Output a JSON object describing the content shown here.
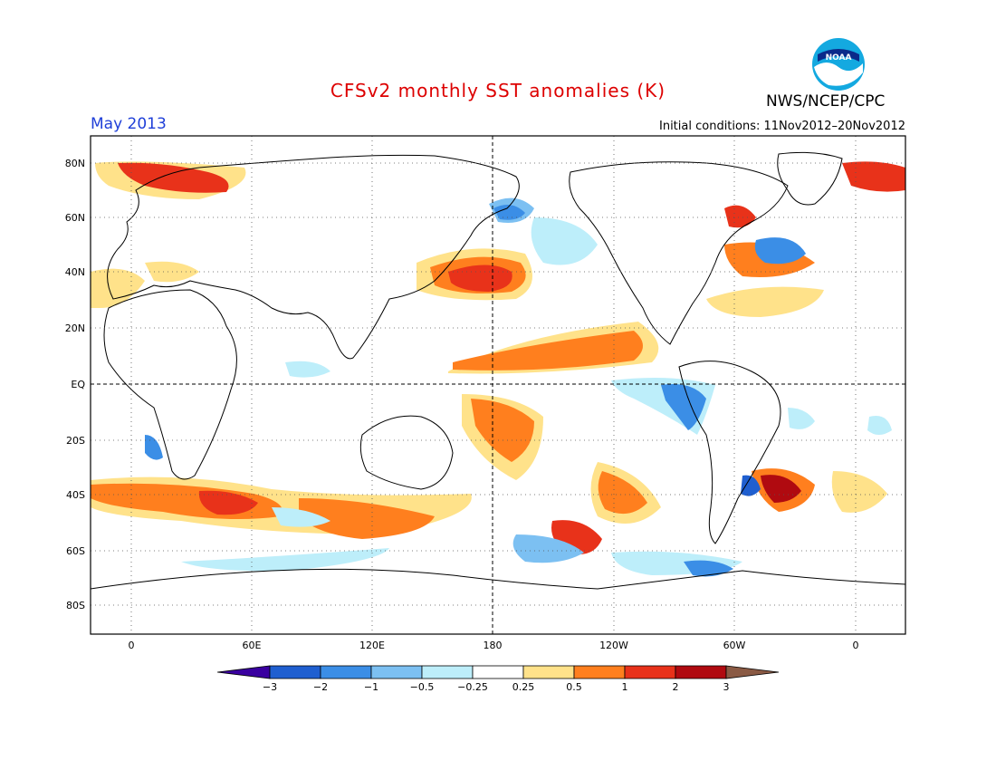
{
  "header": {
    "title": "CFSv2 monthly SST anomalies (K)",
    "month": "May 2013",
    "agency": "NWS/NCEP/CPC",
    "initial_conditions": "Initial conditions: 11Nov2012–20Nov2012",
    "logo_text": "NOAA"
  },
  "map": {
    "lat_labels": [
      "80N",
      "60N",
      "40N",
      "20N",
      "EQ",
      "20S",
      "40S",
      "60S",
      "80S"
    ],
    "lon_labels": [
      "0",
      "60E",
      "120E",
      "180",
      "120W",
      "60W",
      "0"
    ]
  },
  "colorbar": {
    "tick_labels": [
      "−3",
      "−2",
      "−1",
      "−0.5",
      "−0.25",
      "0.25",
      "0.5",
      "1",
      "2",
      "3"
    ],
    "colors": [
      "#3a00a0",
      "#1f5fd0",
      "#3b8ee6",
      "#7cc0f2",
      "#bdeefa",
      "#ffffff",
      "#ffe28a",
      "#ff7f1e",
      "#e8321a",
      "#b00a10",
      "#8a5a44"
    ]
  }
}
